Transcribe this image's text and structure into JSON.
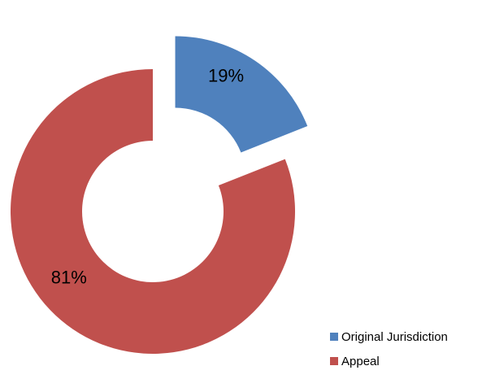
{
  "chart_data": {
    "type": "pie",
    "donut": true,
    "exploded": true,
    "slices": [
      {
        "label": "Original Jurisdiction",
        "value": 19,
        "value_label": "19%",
        "color": "#4F81BD"
      },
      {
        "label": "Appeal",
        "value": 81,
        "value_label": "81%",
        "color": "#C0504D"
      }
    ],
    "legend_position": "bottom-right"
  }
}
